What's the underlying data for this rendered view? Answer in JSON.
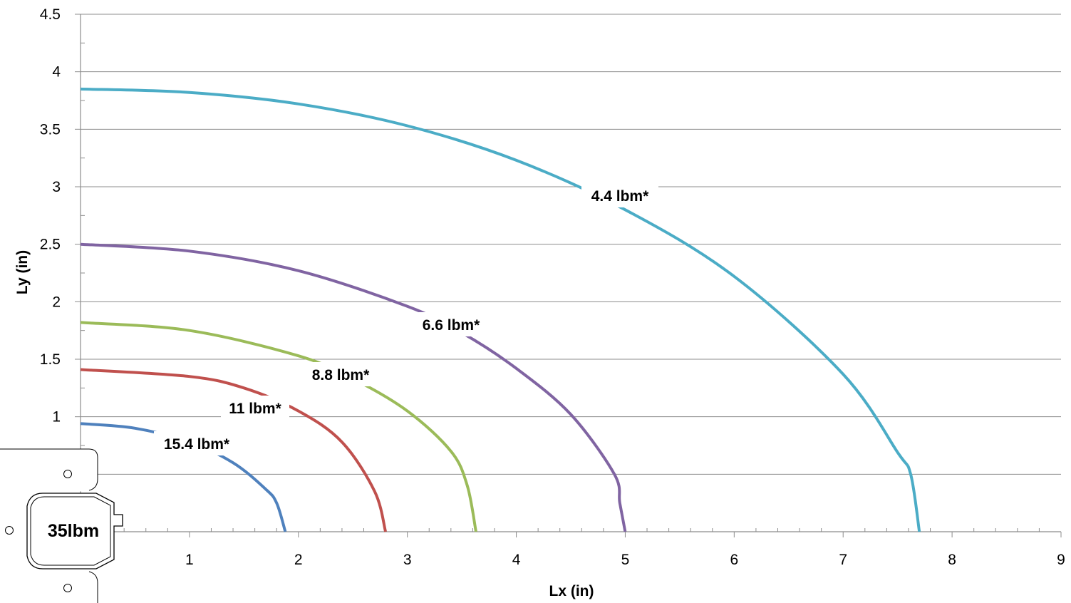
{
  "chart_data": {
    "type": "line",
    "xlabel": "Lx (in)",
    "ylabel": "Ly (in)",
    "xlim": [
      0,
      9
    ],
    "ylim": [
      0,
      4.5
    ],
    "xticks": [
      "1",
      "2",
      "3",
      "4",
      "5",
      "6",
      "7",
      "8",
      "9"
    ],
    "yticks": [
      "1",
      "1.5",
      "2",
      "2.5",
      "3",
      "3.5",
      "4",
      "4.5"
    ],
    "grid": "horizontal",
    "legend": "none (inline curve labels)",
    "series": [
      {
        "name": "4.4 lbm*",
        "color": "#4bacc6",
        "x": [
          0,
          1,
          2,
          3,
          4,
          5,
          6,
          7,
          7.5,
          7.62,
          7.7
        ],
        "y": [
          3.85,
          3.82,
          3.72,
          3.53,
          3.23,
          2.8,
          2.22,
          1.37,
          0.69,
          0.5,
          0
        ]
      },
      {
        "name": "6.6 lbm*",
        "color": "#8064a2",
        "x": [
          0,
          1,
          2,
          3,
          3.5,
          4,
          4.5,
          4.9,
          4.95,
          5.0
        ],
        "y": [
          2.5,
          2.44,
          2.27,
          1.96,
          1.73,
          1.42,
          1.02,
          0.5,
          0.25,
          0
        ]
      },
      {
        "name": "8.8 lbm*",
        "color": "#9bbb59",
        "x": [
          0,
          1,
          2,
          2.5,
          3,
          3.4,
          3.55,
          3.63
        ],
        "y": [
          1.82,
          1.75,
          1.53,
          1.33,
          1.05,
          0.7,
          0.4,
          0
        ]
      },
      {
        "name": "11 lbm*",
        "color": "#c0504d",
        "x": [
          0,
          1,
          1.5,
          2,
          2.4,
          2.7,
          2.8
        ],
        "y": [
          1.41,
          1.35,
          1.25,
          1.05,
          0.78,
          0.35,
          0
        ]
      },
      {
        "name": "15.4 lbm*",
        "color": "#4f81bd",
        "x": [
          0,
          0.5,
          1,
          1.4,
          1.7,
          1.8,
          1.88
        ],
        "y": [
          0.94,
          0.9,
          0.78,
          0.6,
          0.37,
          0.25,
          0
        ]
      }
    ],
    "annotations": [
      "35lbm"
    ]
  }
}
